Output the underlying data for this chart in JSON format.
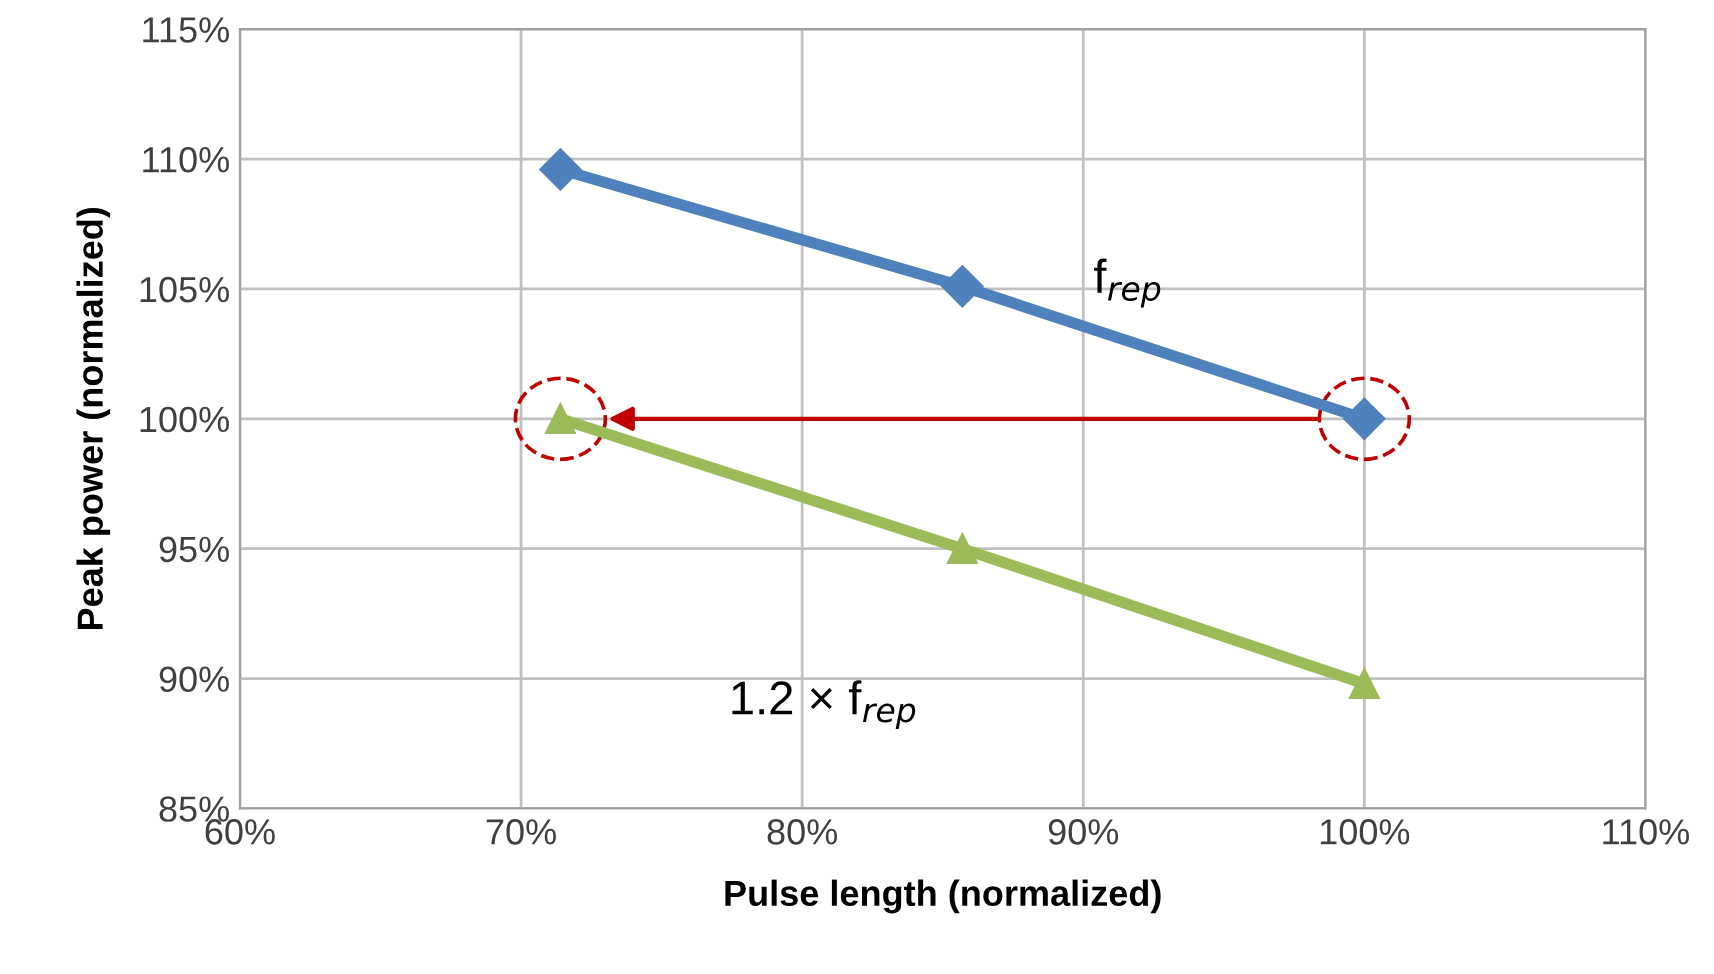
{
  "chart_data": {
    "type": "line",
    "xlabel": "Pulse length (normalized)",
    "ylabel": "Peak power (normalized)",
    "x": [
      71.4,
      85.7,
      100
    ],
    "series": [
      {
        "name": "f$_{rep}$",
        "color": "#4f81bd",
        "values": [
          109.6,
          105.1,
          100
        ],
        "marker": "diamond"
      },
      {
        "name": "1.2 × f$_{rep}$",
        "color": "#9bbb59",
        "values": [
          100,
          95,
          89.8
        ],
        "marker": "triangle"
      }
    ],
    "xlim": [
      60,
      110
    ],
    "xticks": [
      {
        "value": 60,
        "label": "60%"
      },
      {
        "value": 70,
        "label": "70%"
      },
      {
        "value": 80,
        "label": "80%"
      },
      {
        "value": 90,
        "label": "90%"
      },
      {
        "value": 100,
        "label": "100%"
      },
      {
        "value": 110,
        "label": "110%"
      }
    ],
    "ylim": [
      85,
      115
    ],
    "yticks": [
      {
        "value": 85,
        "label": "85%"
      },
      {
        "value": 90,
        "label": "90%"
      },
      {
        "value": 95,
        "label": "95%"
      },
      {
        "value": 100,
        "label": "100%"
      },
      {
        "value": 105,
        "label": "105%"
      },
      {
        "value": 110,
        "label": "110%"
      },
      {
        "value": 115,
        "label": "115%"
      }
    ],
    "grid": true,
    "legend": false,
    "line_style": "solid"
  }
}
